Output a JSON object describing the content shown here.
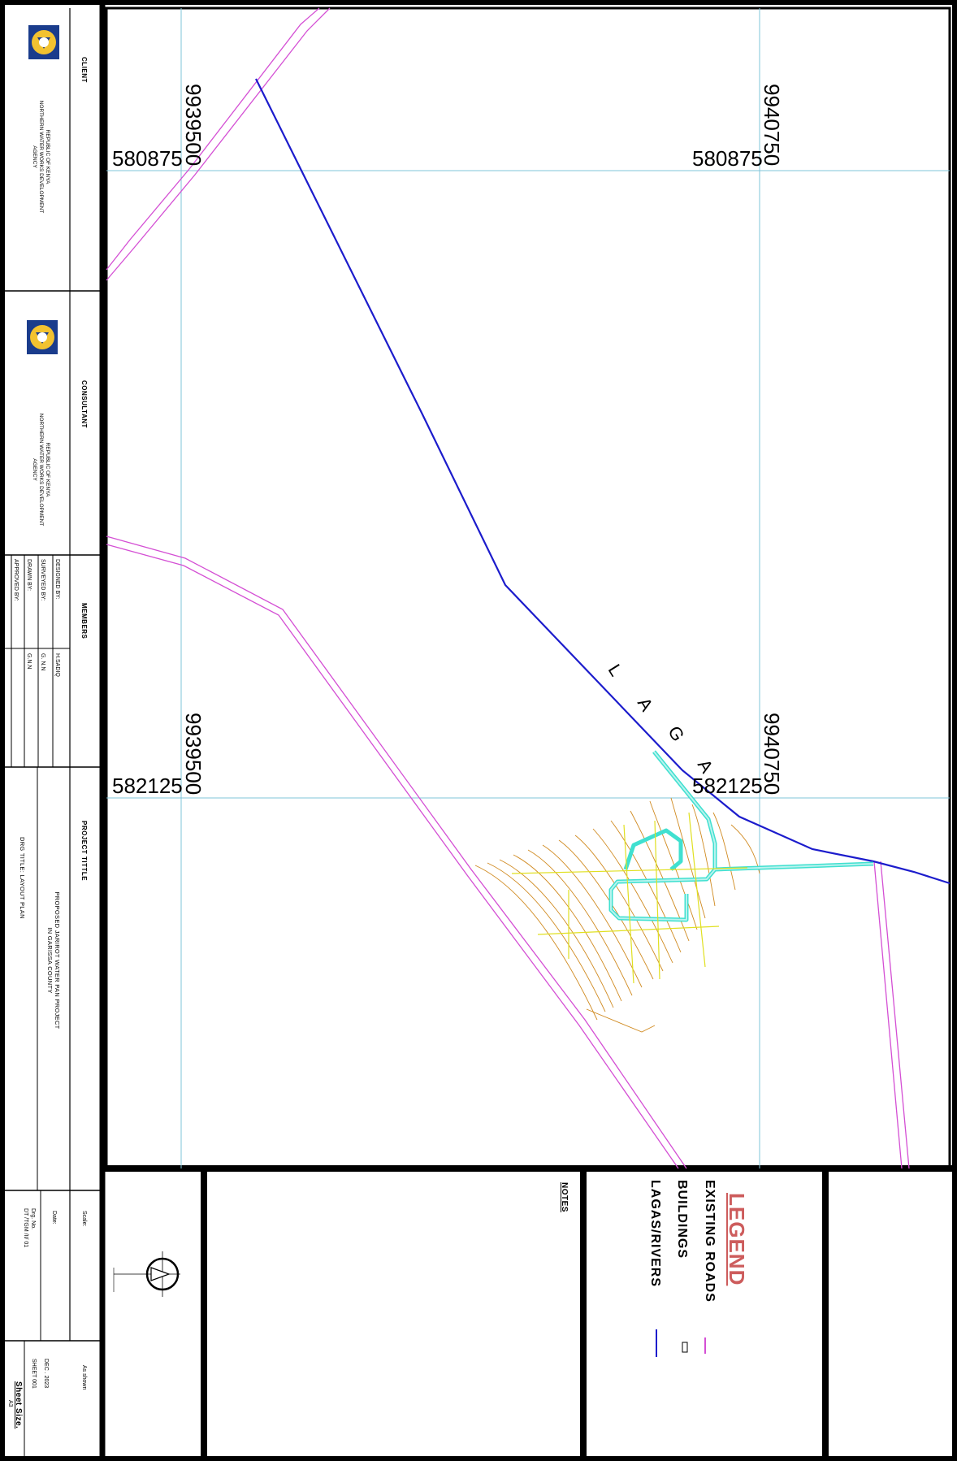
{
  "title_block": {
    "client_header": "CLIENT",
    "client_org_line1": "REPUBLIC OF KENYA",
    "client_org_line2": "NORTHERN WATER WORKS  DEVELOPMENT",
    "client_org_line3": "AGENCY",
    "consultant_header": "CONSULTANT",
    "consultant_org_line1": "REPUBLIC OF KENYA",
    "consultant_org_line2": "NORTHERN WATER WORKS  DEVELOPMENT",
    "consultant_org_line3": "AGENCY",
    "members_header": "MEMBERS",
    "members": [
      {
        "role": "DESIGNED BY:",
        "name": "H.SADIQ"
      },
      {
        "role": "SURVEYED BY:",
        "name": "G. N.N"
      },
      {
        "role": "DRAWN BY:",
        "name": "G.N.N"
      },
      {
        "role": "APPROVED BY:",
        "name": ""
      }
    ],
    "project_header": "PROJECT  TITTLE",
    "project_line1": "PROPOSED  JARIROT  WATER  PAN  PROJECT",
    "project_line2": "IN GARISSA COUNTY",
    "drawing_title": "DRG TITLE: LAYOUT PLAN",
    "scale_label": "Scale:",
    "scale_value": "As shown",
    "date_label": "Date:",
    "date_value": "DEC . 2023",
    "drg_no_label": "Drg. No.",
    "drg_no_value": "DT /TGM /II/ 01",
    "sheet_value": "SHEET 001",
    "sheet_size_label": "Sheet Size.",
    "sheet_size_value": "A3"
  },
  "map": {
    "grid_labels": {
      "tl_northing": "9939500",
      "tl_easting": "580875",
      "tr_northing": "9940750",
      "tr_easting": "580875",
      "bl_northing": "9939500",
      "bl_easting": "582125",
      "br_northing": "9940750",
      "br_easting": "582125"
    },
    "laga_letters": [
      "L",
      "A",
      "G",
      "A"
    ]
  },
  "legend": {
    "title": "LEGEND",
    "items": [
      {
        "label": "EXISTING  ROADS",
        "symbol_color": "#d44fd4"
      },
      {
        "label": "BUILDINGS",
        "symbol_color": "#000000"
      },
      {
        "label": "LAGAS/RIVERS",
        "symbol_color": "#1c1ccc"
      }
    ]
  },
  "notes": {
    "title": "NOTES"
  },
  "colors": {
    "road": "#d44fd4",
    "river": "#1c1ccc",
    "grid": "#7fc4d8",
    "contour": "#d08a20",
    "structure": "#40e0d0",
    "pipe": "#e0e020",
    "legend_title": "#cd5c5c"
  }
}
